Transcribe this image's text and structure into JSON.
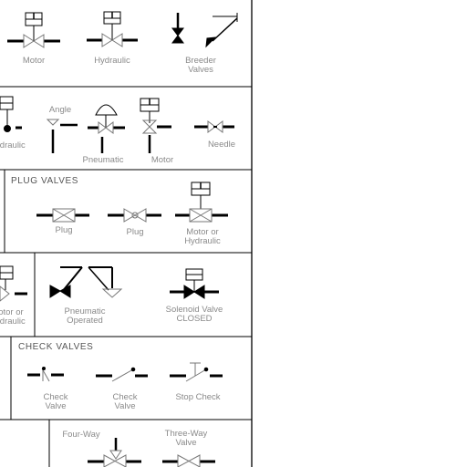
{
  "sections": {
    "top": {
      "labels": {
        "motor": "Motor",
        "hydraulic": "Hydraulic",
        "breeder": "Breeder\nValves"
      }
    },
    "second": {
      "labels": {
        "hydraulic": "Hydraulic",
        "angle": "Angle",
        "pneumatic": "Pneumatic",
        "motor": "Motor",
        "needle": "Needle"
      }
    },
    "plug_valves": {
      "title": "PLUG VALVES",
      "labels": {
        "plug1": "Plug",
        "plug2": "Plug",
        "motor_hydraulic": "Motor or\nHydraulic"
      }
    },
    "fourth": {
      "labels": {
        "motor_hydraulic": "Motor or\nHydraulic",
        "pneumatic": "Pneumatic\nOperated",
        "solenoid": "Solenoid Valve\nCLOSED"
      }
    },
    "check_valves": {
      "title": "CHECK VALVES",
      "labels": {
        "check1": "Check\nValve",
        "check2": "Check\nValve",
        "stop": "Stop Check"
      }
    },
    "bottom": {
      "labels": {
        "fourway": "Four-Way",
        "threeway": "Three-Way\nValve"
      }
    }
  },
  "colors": {
    "line": "#000000",
    "label": "#8a8a8a"
  }
}
